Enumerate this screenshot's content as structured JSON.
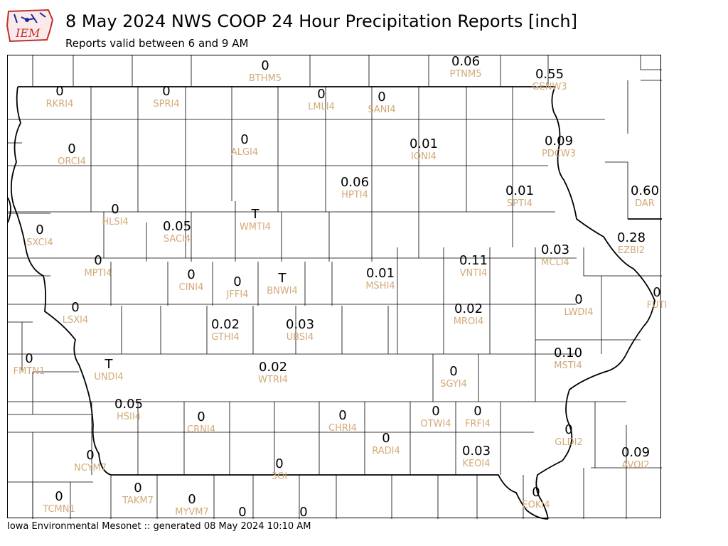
{
  "logo": {
    "text": "IEM"
  },
  "header": {
    "title": "8 May 2024 NWS COOP 24 Hour Precipitation Reports [inch]",
    "subtitle": "Reports valid between 6 and 9 AM"
  },
  "stations": [
    {
      "id": "BTHM5",
      "value": "0"
    },
    {
      "id": "PTNM5",
      "value": "0.06"
    },
    {
      "id": "GENW3",
      "value": "0.55"
    },
    {
      "id": "RKRI4",
      "value": "0"
    },
    {
      "id": "SPRI4",
      "value": "0"
    },
    {
      "id": "LMLI4",
      "value": "0"
    },
    {
      "id": "SANI4",
      "value": "0"
    },
    {
      "id": "ALGI4",
      "value": "0"
    },
    {
      "id": "ORCI4",
      "value": "0"
    },
    {
      "id": "IONI4",
      "value": "0.01"
    },
    {
      "id": "PDCW3",
      "value": "0.09"
    },
    {
      "id": "HPTI4",
      "value": "0.06"
    },
    {
      "id": "SPTI4",
      "value": "0.01"
    },
    {
      "id": "DAR",
      "value": "0.60"
    },
    {
      "id": "HLSI4",
      "value": "0"
    },
    {
      "id": "WMTI4",
      "value": "T"
    },
    {
      "id": "SACI4",
      "value": "0.05"
    },
    {
      "id": "SXCI4",
      "value": "0"
    },
    {
      "id": "EZBI2",
      "value": "0.28"
    },
    {
      "id": "MCLI4",
      "value": "0.03"
    },
    {
      "id": "MPTI4",
      "value": "0"
    },
    {
      "id": "CINI4",
      "value": "0"
    },
    {
      "id": "JFFI4",
      "value": "0"
    },
    {
      "id": "BNWI4",
      "value": "T"
    },
    {
      "id": "MSHI4",
      "value": "0.01"
    },
    {
      "id": "VNTI4",
      "value": "0.11"
    },
    {
      "id": "FUTI",
      "value": "0"
    },
    {
      "id": "LWDI4",
      "value": "0"
    },
    {
      "id": "LSXI4",
      "value": "0"
    },
    {
      "id": "MROI4",
      "value": "0.02"
    },
    {
      "id": "GTHI4",
      "value": "0.02"
    },
    {
      "id": "UBSI4",
      "value": "0.03"
    },
    {
      "id": "FMTN1",
      "value": "0"
    },
    {
      "id": "UNDI4",
      "value": "T"
    },
    {
      "id": "WTRI4",
      "value": "0.02"
    },
    {
      "id": "SGYI4",
      "value": "0"
    },
    {
      "id": "MSTI4",
      "value": "0.10"
    },
    {
      "id": "HSII4",
      "value": "0.05"
    },
    {
      "id": "CRNI4",
      "value": "0"
    },
    {
      "id": "CHRI4",
      "value": "0"
    },
    {
      "id": "OTWI4",
      "value": "0"
    },
    {
      "id": "FRFI4",
      "value": "0"
    },
    {
      "id": "GLDI2",
      "value": "0"
    },
    {
      "id": "RADI4",
      "value": "0"
    },
    {
      "id": "NCYM7",
      "value": "0"
    },
    {
      "id": "KEOI4",
      "value": "0.03"
    },
    {
      "id": "AVOI2",
      "value": "0.09"
    },
    {
      "id": "3OI",
      "value": "0"
    },
    {
      "id": "TCMN1",
      "value": "0"
    },
    {
      "id": "TAKM7",
      "value": "0"
    },
    {
      "id": "MYVM7",
      "value": "0"
    },
    {
      "id": "EOKI4",
      "value": "0"
    },
    {
      "id": "",
      "value": "0"
    },
    {
      "id": "",
      "value": "0"
    }
  ],
  "footer": "Iowa Environmental Mesonet :: generated 08 May 2024 10:10 AM"
}
